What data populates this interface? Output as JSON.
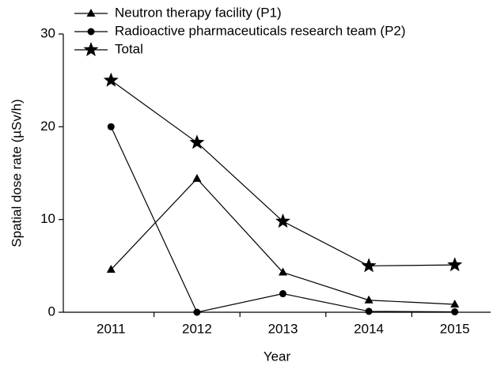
{
  "chart_data": {
    "type": "line",
    "xlabel": "Year",
    "ylabel": "Spatial dose rate  (µSv/h)",
    "categories": [
      "2011",
      "2012",
      "2013",
      "2014",
      "2015"
    ],
    "series": [
      {
        "name": "Neutron therapy facility (P1)",
        "color": "#000000",
        "marker": "triangle",
        "values": [
          4.6,
          14.4,
          4.3,
          1.3,
          0.85
        ]
      },
      {
        "name": "Radioactive pharmaceuticals research team (P2)",
        "color": "#000000",
        "marker": "circle",
        "values": [
          20,
          0,
          2.0,
          0.1,
          0.05
        ]
      },
      {
        "name": "Total",
        "color": "#000000",
        "marker": "star",
        "values": [
          25,
          18.3,
          9.8,
          5.0,
          5.1
        ]
      }
    ],
    "ylim": [
      0,
      30
    ],
    "yticks": [
      0,
      10,
      20,
      30
    ],
    "legend": "upper left"
  }
}
